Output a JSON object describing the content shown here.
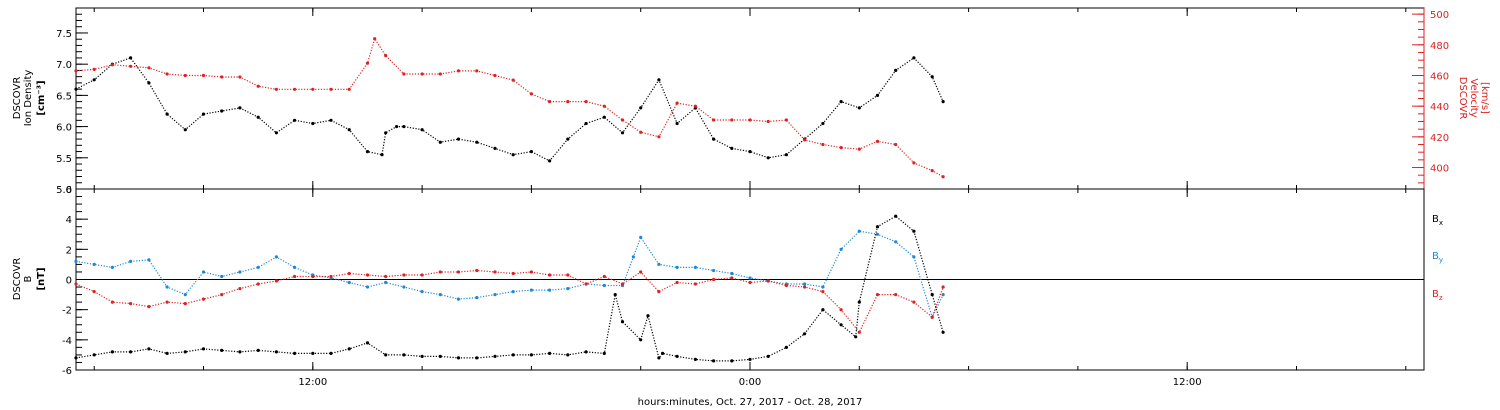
{
  "figure": {
    "xlabel": "hours:minutes, Oct. 27, 2017 - Oct. 28, 2017",
    "x_axis": {
      "unit": "hours since 00:00 Oct. 27, 2017",
      "range": [
        5.5,
        42.5
      ],
      "ticks": [
        {
          "value": 12,
          "label": "12:00"
        },
        {
          "value": 24,
          "label": "0:00"
        },
        {
          "value": 36,
          "label": "12:00"
        }
      ]
    },
    "colors": {
      "black": "#000000",
      "red": "#dd2222",
      "blue": "#1e88d8"
    }
  },
  "chart_data": [
    {
      "type": "scatter",
      "panel": "top",
      "ylabel": "DSCOVR Ion Density [cm-3]",
      "ylabel_lines": [
        "DSCOVR",
        "Ion Density"
      ],
      "ylabel_unit": "[cm⁻³]",
      "ylim": [
        5.0,
        7.9
      ],
      "yticks": [
        5.0,
        5.5,
        6.0,
        6.5,
        7.0,
        7.5
      ],
      "ytick_labels": [
        "5.0",
        "5.5",
        "6.0",
        "6.5",
        "7.0",
        "7.5"
      ],
      "y2label": "DSCOVR Velocity [km/s]",
      "y2label_lines": [
        "DSCOVR",
        "Velocity",
        "[km/s]"
      ],
      "y2lim": [
        386,
        504
      ],
      "y2ticks": [
        400,
        420,
        440,
        460,
        480,
        500
      ],
      "y2tick_labels": [
        "400",
        "420",
        "440",
        "460",
        "480",
        "500"
      ],
      "grid": false,
      "series": [
        {
          "name": "Ion Density",
          "axis": "left",
          "color": "#000000",
          "x": [
            5.5,
            6.0,
            6.5,
            7.0,
            7.5,
            8.0,
            8.5,
            9.0,
            9.5,
            10.0,
            10.5,
            11.0,
            11.5,
            12.0,
            12.5,
            13.0,
            13.5,
            13.9,
            14.0,
            14.3,
            14.5,
            15.0,
            15.5,
            16.0,
            16.5,
            17.0,
            17.5,
            18.0,
            18.5,
            19.0,
            19.5,
            20.0,
            20.5,
            21.0,
            21.5,
            22.0,
            22.5,
            23.0,
            23.5,
            24.0,
            24.5,
            25.0,
            25.5,
            26.0,
            26.5,
            27.0,
            27.5,
            28.0,
            28.5,
            29.0,
            29.3
          ],
          "y": [
            6.6,
            6.75,
            7.0,
            7.1,
            6.7,
            6.2,
            5.95,
            6.2,
            6.25,
            6.3,
            6.15,
            5.9,
            6.1,
            6.05,
            6.1,
            5.95,
            5.6,
            5.55,
            5.9,
            6.0,
            6.0,
            5.95,
            5.75,
            5.8,
            5.75,
            5.65,
            5.55,
            5.6,
            5.45,
            5.8,
            6.05,
            6.15,
            5.9,
            6.3,
            6.75,
            6.05,
            6.3,
            5.8,
            5.65,
            5.6,
            5.5,
            5.55,
            5.8,
            6.05,
            6.4,
            6.3,
            6.5,
            6.9,
            7.1,
            6.8,
            6.4
          ]
        },
        {
          "name": "Velocity",
          "axis": "right",
          "color": "#dd2222",
          "x": [
            5.5,
            6.0,
            6.5,
            7.0,
            7.5,
            8.0,
            8.5,
            9.0,
            9.5,
            10.0,
            10.5,
            11.0,
            11.5,
            12.0,
            12.5,
            13.0,
            13.5,
            13.7,
            14.0,
            14.5,
            15.0,
            15.5,
            16.0,
            16.5,
            17.0,
            17.5,
            18.0,
            18.5,
            19.0,
            19.5,
            20.0,
            20.5,
            21.0,
            21.5,
            22.0,
            22.5,
            23.0,
            23.5,
            24.0,
            24.5,
            25.0,
            25.5,
            26.0,
            26.5,
            27.0,
            27.5,
            28.0,
            28.5,
            29.0,
            29.3
          ],
          "y": [
            463,
            464,
            467,
            466,
            465,
            461,
            460,
            460,
            459,
            459,
            453,
            451,
            451,
            451,
            451,
            451,
            468,
            484,
            473,
            461,
            461,
            461,
            463,
            463,
            460,
            457,
            448,
            443,
            443,
            443,
            440,
            431,
            423,
            420,
            442,
            440,
            431,
            431,
            431,
            430,
            431,
            418,
            415,
            413,
            412,
            417,
            415,
            403,
            398,
            394
          ]
        }
      ]
    },
    {
      "type": "scatter",
      "panel": "bottom",
      "ylabel": "DSCOVR B [nT]",
      "ylabel_lines": [
        "DSCOVR",
        "B"
      ],
      "ylabel_unit": "[nT]",
      "ylim": [
        -6,
        6
      ],
      "yticks": [
        -6,
        -4,
        -2,
        0,
        2,
        4,
        6
      ],
      "ytick_labels": [
        "-6",
        "-4",
        "-2",
        "0",
        "2",
        "4",
        "6"
      ],
      "zero_line": true,
      "grid": false,
      "series": [
        {
          "name": "Bx",
          "label_main": "B",
          "label_sub": "x",
          "color": "#000000",
          "x": [
            5.5,
            6.0,
            6.5,
            7.0,
            7.5,
            8.0,
            8.5,
            9.0,
            9.5,
            10.0,
            10.5,
            11.0,
            11.5,
            12.0,
            12.5,
            13.0,
            13.5,
            14.0,
            14.5,
            15.0,
            15.5,
            16.0,
            16.5,
            17.0,
            17.5,
            18.0,
            18.5,
            19.0,
            19.5,
            20.0,
            20.3,
            20.5,
            21.0,
            21.2,
            21.5,
            21.6,
            22.0,
            22.5,
            23.0,
            23.5,
            24.0,
            24.5,
            25.0,
            25.5,
            26.0,
            26.5,
            26.9,
            27.0,
            27.5,
            28.0,
            28.5,
            29.0,
            29.3
          ],
          "y": [
            -5.2,
            -5.0,
            -4.8,
            -4.8,
            -4.6,
            -4.9,
            -4.8,
            -4.6,
            -4.7,
            -4.8,
            -4.7,
            -4.8,
            -4.9,
            -4.9,
            -4.9,
            -4.6,
            -4.2,
            -5.0,
            -5.0,
            -5.1,
            -5.1,
            -5.2,
            -5.2,
            -5.1,
            -5.0,
            -5.0,
            -4.9,
            -5.0,
            -4.8,
            -4.9,
            -1.0,
            -2.8,
            -4.0,
            -2.4,
            -5.2,
            -4.9,
            -5.1,
            -5.3,
            -5.4,
            -5.4,
            -5.3,
            -5.1,
            -4.5,
            -3.6,
            -2.0,
            -3.0,
            -3.8,
            -1.5,
            3.5,
            4.2,
            3.2,
            -1.0,
            -3.5
          ]
        },
        {
          "name": "By",
          "label_main": "B",
          "label_sub": "y",
          "color": "#1e88d8",
          "x": [
            5.5,
            6.0,
            6.5,
            7.0,
            7.5,
            8.0,
            8.5,
            9.0,
            9.5,
            10.0,
            10.5,
            11.0,
            11.5,
            12.0,
            12.5,
            13.0,
            13.5,
            14.0,
            14.5,
            15.0,
            15.5,
            16.0,
            16.5,
            17.0,
            17.5,
            18.0,
            18.5,
            19.0,
            19.5,
            20.0,
            20.5,
            20.8,
            21.0,
            21.5,
            22.0,
            22.5,
            23.0,
            23.5,
            24.0,
            24.5,
            25.0,
            25.5,
            26.0,
            26.5,
            27.0,
            27.5,
            28.0,
            28.5,
            29.0,
            29.3
          ],
          "y": [
            1.2,
            1.0,
            0.8,
            1.2,
            1.3,
            -0.5,
            -1.0,
            0.5,
            0.2,
            0.5,
            0.8,
            1.5,
            0.8,
            0.3,
            0.1,
            -0.2,
            -0.5,
            -0.2,
            -0.5,
            -0.8,
            -1.0,
            -1.3,
            -1.2,
            -1.0,
            -0.8,
            -0.7,
            -0.7,
            -0.6,
            -0.3,
            -0.4,
            -0.4,
            1.5,
            2.8,
            1.0,
            0.8,
            0.8,
            0.6,
            0.4,
            0.1,
            -0.1,
            -0.3,
            -0.3,
            -0.5,
            2.0,
            3.2,
            3.0,
            2.5,
            1.5,
            -2.5,
            -1.0
          ]
        },
        {
          "name": "Bz",
          "label_main": "B",
          "label_sub": "z",
          "color": "#dd2222",
          "x": [
            5.5,
            6.0,
            6.5,
            7.0,
            7.5,
            8.0,
            8.5,
            9.0,
            9.5,
            10.0,
            10.5,
            11.0,
            11.5,
            12.0,
            12.5,
            13.0,
            13.5,
            14.0,
            14.5,
            15.0,
            15.5,
            16.0,
            16.5,
            17.0,
            17.5,
            18.0,
            18.5,
            19.0,
            19.5,
            20.0,
            20.5,
            21.0,
            21.5,
            22.0,
            22.5,
            23.0,
            23.5,
            24.0,
            24.5,
            25.0,
            25.5,
            26.0,
            26.5,
            27.0,
            27.5,
            28.0,
            28.5,
            29.0,
            29.3
          ],
          "y": [
            -0.3,
            -0.8,
            -1.5,
            -1.6,
            -1.8,
            -1.5,
            -1.6,
            -1.3,
            -1.0,
            -0.6,
            -0.3,
            -0.1,
            0.2,
            0.2,
            0.2,
            0.4,
            0.3,
            0.2,
            0.3,
            0.3,
            0.5,
            0.5,
            0.6,
            0.5,
            0.4,
            0.5,
            0.3,
            0.3,
            -0.3,
            0.2,
            -0.3,
            0.5,
            -0.8,
            -0.2,
            -0.3,
            0.0,
            0.1,
            -0.2,
            -0.1,
            -0.4,
            -0.5,
            -0.8,
            -2.0,
            -3.5,
            -1.0,
            -1.0,
            -1.5,
            -2.5,
            -0.5
          ]
        }
      ]
    }
  ]
}
